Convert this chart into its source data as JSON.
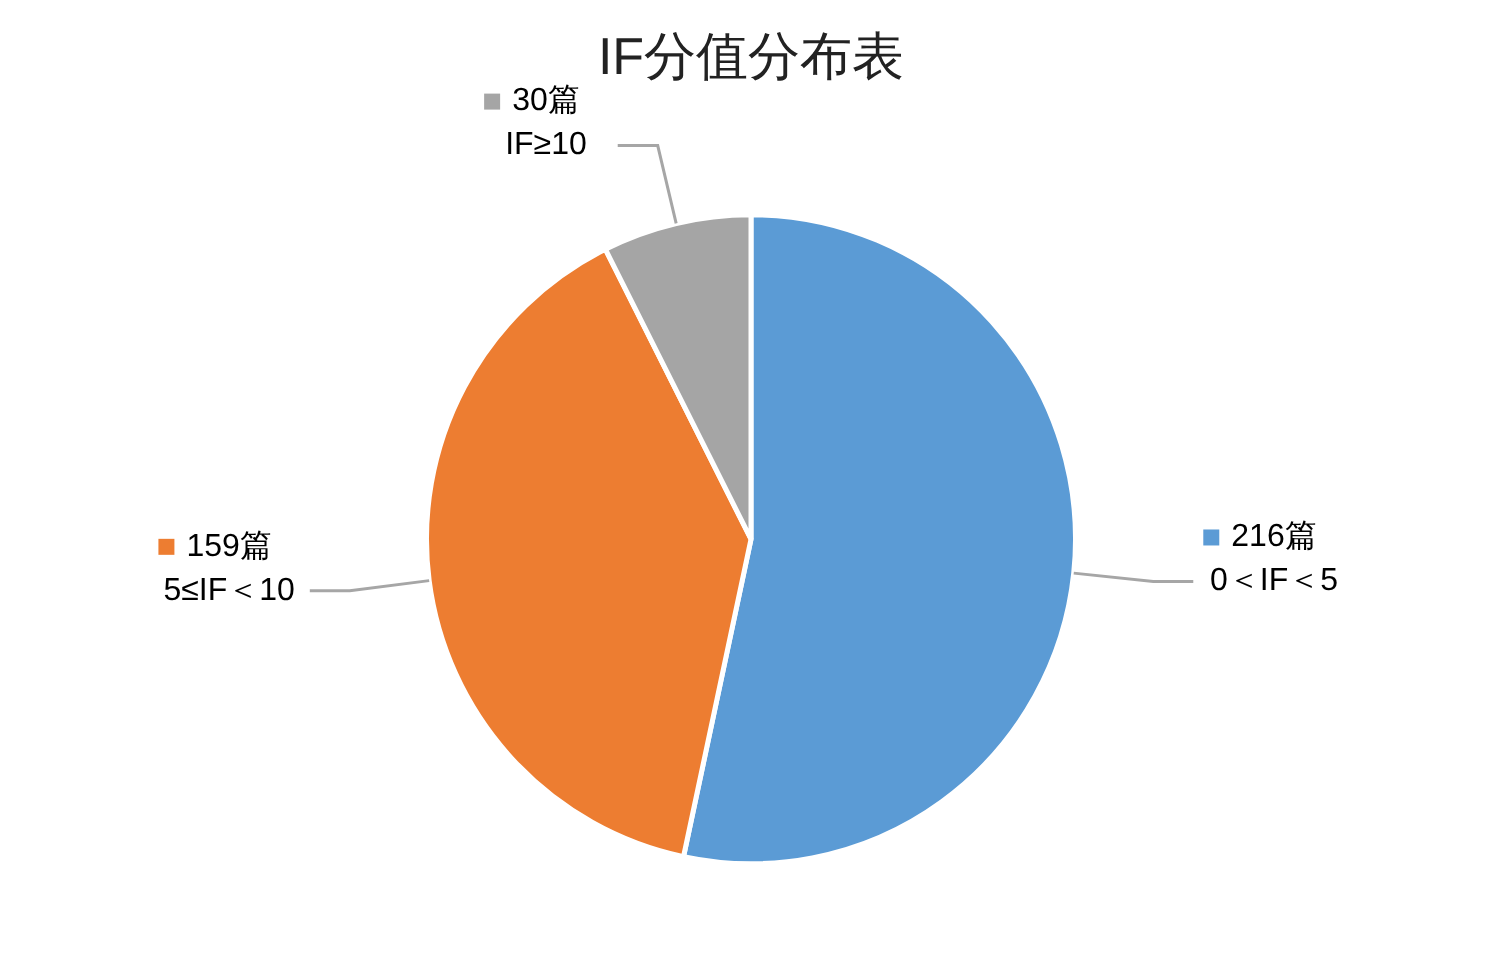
{
  "chart_data": {
    "type": "pie",
    "title": "IF分值分布表",
    "categories": [
      "0＜IF＜5",
      "5≤IF＜10",
      "IF≥10"
    ],
    "values": [
      216,
      159,
      30
    ],
    "colors": [
      "#5b9bd5",
      "#ed7d31",
      "#a5a5a5"
    ],
    "value_labels": [
      "216篇",
      "159篇",
      "30篇"
    ],
    "legend": "right"
  }
}
